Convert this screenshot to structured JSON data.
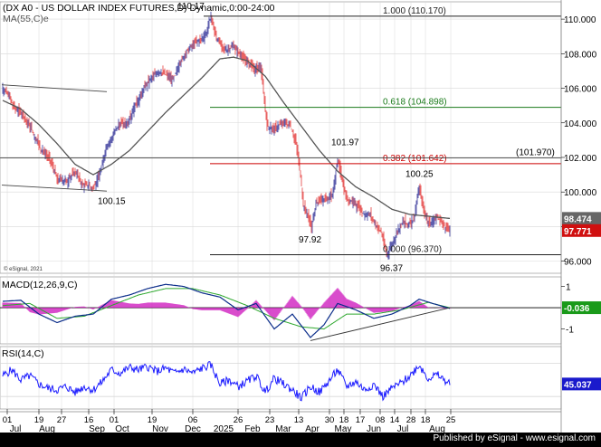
{
  "header": {
    "title": "(DX A0 - US DOLLAR INDEX FUTURES,D) Dynamic,0:00-24:00",
    "ma_label": "MA(55,C)e",
    "credit": "© eSignal, 2021"
  },
  "footer": {
    "text": "Published by eSignal - www.esignal.com"
  },
  "colors": {
    "up": "#1a1a8c",
    "down": "#e02020",
    "ma": "#555555",
    "fib_green": "#1a7a1a",
    "fib_red": "#cc0000",
    "macd": "#0b2d8a",
    "signal": "#2ea82e",
    "hist": "#d020c0",
    "rsi": "#1a1aff",
    "grid": "#d8d8d8"
  },
  "chart_data": [
    {
      "type": "candlestick",
      "name": "price",
      "ylim": [
        95.3,
        111.0
      ],
      "y_ticks": [
        "110.000",
        "108.000",
        "106.000",
        "104.000",
        "102.000",
        "100.000",
        "98.000",
        "96.000"
      ],
      "x_ticks": [
        "Jul",
        "Aug",
        "Sep",
        "Oct",
        "Nov",
        "Dec",
        "2025",
        "Feb",
        "Mar",
        "Apr",
        "May",
        "Jun",
        "Jul",
        "Aug"
      ],
      "x_tick_days": [
        "01",
        "19",
        "27",
        "16",
        "01",
        "19",
        "06",
        "26",
        "23",
        "13",
        "30",
        "18",
        "17",
        "08",
        "14",
        "28",
        "18",
        "25"
      ],
      "last_price": "97.771",
      "ma_value": "98.474",
      "fib_levels": [
        {
          "label": "1.000 (110.170)",
          "value": 110.17
        },
        {
          "label": "0.618 (104.898)",
          "value": 104.898
        },
        {
          "label": "0.382 (101.642)",
          "value": 101.642
        },
        {
          "label": "0.000 (96.370)",
          "value": 96.37
        }
      ],
      "horizontal_level": {
        "label": "(101.970)",
        "value": 101.97
      },
      "annotations": [
        {
          "text": "110.17",
          "value": 110.17
        },
        {
          "text": "101.97",
          "value": 101.97
        },
        {
          "text": "100.25",
          "value": 100.25
        },
        {
          "text": "100.15",
          "value": 100.15
        },
        {
          "text": "97.92",
          "value": 97.92
        },
        {
          "text": "96.37",
          "value": 96.37
        }
      ],
      "anchors": [
        [
          0,
          106.0
        ],
        [
          6,
          105.6
        ],
        [
          14,
          104.8
        ],
        [
          22,
          104.5
        ],
        [
          32,
          103.6
        ],
        [
          42,
          102.5
        ],
        [
          52,
          101.9
        ],
        [
          60,
          100.8
        ],
        [
          70,
          100.6
        ],
        [
          80,
          101.2
        ],
        [
          88,
          100.4
        ],
        [
          95,
          100.4
        ],
        [
          100,
          100.15
        ],
        [
          108,
          101.2
        ],
        [
          114,
          102.6
        ],
        [
          121,
          103.2
        ],
        [
          128,
          103.9
        ],
        [
          138,
          104.0
        ],
        [
          148,
          105.2
        ],
        [
          156,
          106.0
        ],
        [
          164,
          106.6
        ],
        [
          172,
          107.0
        ],
        [
          180,
          106.8
        ],
        [
          188,
          106.5
        ],
        [
          196,
          107.5
        ],
        [
          204,
          108.2
        ],
        [
          212,
          108.6
        ],
        [
          220,
          108.9
        ],
        [
          225,
          109.2
        ],
        [
          230,
          110.17
        ],
        [
          236,
          108.9
        ],
        [
          242,
          108.4
        ],
        [
          248,
          108.2
        ],
        [
          254,
          108.4
        ],
        [
          260,
          108.1
        ],
        [
          266,
          107.7
        ],
        [
          272,
          107.4
        ],
        [
          278,
          107.1
        ],
        [
          285,
          107.2
        ],
        [
          292,
          103.8
        ],
        [
          300,
          103.7
        ],
        [
          310,
          104.0
        ],
        [
          318,
          103.8
        ],
        [
          324,
          102.8
        ],
        [
          328,
          101.4
        ],
        [
          332,
          99.3
        ],
        [
          336,
          98.8
        ],
        [
          341,
          97.92
        ],
        [
          346,
          99.3
        ],
        [
          352,
          99.6
        ],
        [
          358,
          99.5
        ],
        [
          364,
          99.8
        ],
        [
          370,
          101.97
        ],
        [
          376,
          100.3
        ],
        [
          382,
          99.5
        ],
        [
          388,
          99.4
        ],
        [
          394,
          99.0
        ],
        [
          400,
          98.7
        ],
        [
          406,
          98.7
        ],
        [
          412,
          98.1
        ],
        [
          418,
          97.7
        ],
        [
          424,
          96.37
        ],
        [
          430,
          97.0
        ],
        [
          436,
          97.7
        ],
        [
          442,
          98.3
        ],
        [
          448,
          98.1
        ],
        [
          454,
          98.4
        ],
        [
          460,
          100.25
        ],
        [
          466,
          98.7
        ],
        [
          472,
          98.1
        ],
        [
          478,
          98.6
        ],
        [
          484,
          98.3
        ],
        [
          490,
          97.9
        ],
        [
          494,
          97.77
        ]
      ],
      "ma_anchors": [
        [
          0,
          105.3
        ],
        [
          20,
          104.8
        ],
        [
          40,
          103.9
        ],
        [
          60,
          102.8
        ],
        [
          80,
          101.6
        ],
        [
          100,
          101.0
        ],
        [
          120,
          101.6
        ],
        [
          140,
          102.4
        ],
        [
          160,
          103.5
        ],
        [
          180,
          104.6
        ],
        [
          200,
          105.6
        ],
        [
          220,
          106.6
        ],
        [
          240,
          107.7
        ],
        [
          255,
          107.8
        ],
        [
          270,
          107.6
        ],
        [
          290,
          106.7
        ],
        [
          310,
          105.2
        ],
        [
          330,
          103.8
        ],
        [
          350,
          102.4
        ],
        [
          370,
          101.2
        ],
        [
          390,
          100.3
        ],
        [
          410,
          99.7
        ],
        [
          430,
          99.0
        ],
        [
          450,
          98.7
        ],
        [
          470,
          98.6
        ],
        [
          494,
          98.47
        ]
      ]
    },
    {
      "type": "line",
      "name": "MACD(12,26,9,C)",
      "ylim": [
        -1.7,
        1.45
      ],
      "y_ticks": [
        "1",
        "-1"
      ],
      "zero_tick": "0",
      "last_value": "-0.036",
      "macd_anchors": [
        [
          0,
          0.3
        ],
        [
          20,
          0.35
        ],
        [
          40,
          -0.3
        ],
        [
          60,
          -0.7
        ],
        [
          80,
          -0.4
        ],
        [
          100,
          -0.3
        ],
        [
          120,
          0.4
        ],
        [
          140,
          0.6
        ],
        [
          160,
          0.9
        ],
        [
          180,
          1.1
        ],
        [
          200,
          1.0
        ],
        [
          220,
          0.7
        ],
        [
          240,
          0.5
        ],
        [
          260,
          -0.1
        ],
        [
          280,
          0.2
        ],
        [
          300,
          -1.0
        ],
        [
          320,
          -0.3
        ],
        [
          340,
          -1.4
        ],
        [
          355,
          -0.8
        ],
        [
          370,
          0.2
        ],
        [
          390,
          -0.1
        ],
        [
          410,
          -0.5
        ],
        [
          430,
          -0.3
        ],
        [
          450,
          0.1
        ],
        [
          460,
          0.4
        ],
        [
          475,
          0.2
        ],
        [
          494,
          -0.036
        ]
      ],
      "signal_anchors": [
        [
          0,
          0.1
        ],
        [
          30,
          0.2
        ],
        [
          60,
          -0.5
        ],
        [
          90,
          -0.4
        ],
        [
          120,
          0.1
        ],
        [
          150,
          0.6
        ],
        [
          180,
          0.9
        ],
        [
          210,
          0.9
        ],
        [
          240,
          0.6
        ],
        [
          270,
          0.1
        ],
        [
          300,
          -0.5
        ],
        [
          330,
          -0.9
        ],
        [
          355,
          -1.0
        ],
        [
          380,
          -0.3
        ],
        [
          410,
          -0.3
        ],
        [
          440,
          -0.1
        ],
        [
          470,
          0.25
        ],
        [
          494,
          0.0
        ]
      ],
      "trendline": [
        [
          340,
          -1.55
        ],
        [
          494,
          0.0
        ]
      ]
    },
    {
      "type": "line",
      "name": "RSI(14,C)",
      "ylim": [
        15,
        90
      ],
      "last_value": "45.037",
      "rsi_anchors": [
        [
          0,
          55
        ],
        [
          10,
          62
        ],
        [
          20,
          50
        ],
        [
          30,
          55
        ],
        [
          40,
          45
        ],
        [
          50,
          40
        ],
        [
          60,
          38
        ],
        [
          70,
          42
        ],
        [
          80,
          35
        ],
        [
          90,
          42
        ],
        [
          100,
          38
        ],
        [
          110,
          48
        ],
        [
          120,
          62
        ],
        [
          130,
          58
        ],
        [
          140,
          65
        ],
        [
          150,
          62
        ],
        [
          160,
          66
        ],
        [
          170,
          60
        ],
        [
          180,
          64
        ],
        [
          190,
          58
        ],
        [
          200,
          63
        ],
        [
          210,
          58
        ],
        [
          220,
          64
        ],
        [
          230,
          68
        ],
        [
          240,
          45
        ],
        [
          250,
          50
        ],
        [
          260,
          42
        ],
        [
          270,
          48
        ],
        [
          280,
          55
        ],
        [
          290,
          35
        ],
        [
          300,
          52
        ],
        [
          310,
          45
        ],
        [
          320,
          38
        ],
        [
          330,
          28
        ],
        [
          340,
          42
        ],
        [
          350,
          35
        ],
        [
          360,
          48
        ],
        [
          370,
          62
        ],
        [
          380,
          42
        ],
        [
          390,
          48
        ],
        [
          400,
          38
        ],
        [
          410,
          45
        ],
        [
          420,
          30
        ],
        [
          430,
          40
        ],
        [
          440,
          46
        ],
        [
          450,
          55
        ],
        [
          460,
          68
        ],
        [
          470,
          52
        ],
        [
          480,
          56
        ],
        [
          490,
          48
        ],
        [
          494,
          45.04
        ]
      ]
    }
  ]
}
